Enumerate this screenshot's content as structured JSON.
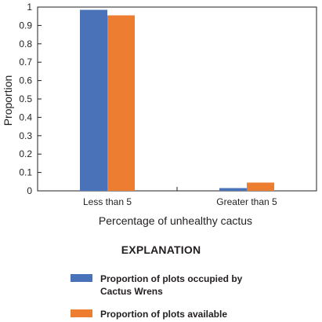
{
  "chart_data": {
    "type": "bar",
    "ylabel": "Proportion",
    "xlabel": "Percentage of unhealthy cactus",
    "categories": [
      "Less than 5",
      "Greater than 5"
    ],
    "ylim": [
      0,
      1
    ],
    "yticks": [
      "0",
      "0.1",
      "0.2",
      "0.3",
      "0.4",
      "0.5",
      "0.6",
      "0.7",
      "0.8",
      "0.9",
      "1"
    ],
    "grid": false,
    "series": [
      {
        "name": "Proportion of plots occupied by Cactus Wrens",
        "color": "#4a72b8",
        "values": [
          0.985,
          0.015
        ]
      },
      {
        "name": "Proportion of plots available",
        "color": "#ed7d31",
        "values": [
          0.955,
          0.045
        ]
      }
    ]
  },
  "legend": {
    "title": "EXPLANATION",
    "items": [
      {
        "line1": "Proportion of plots occupied by",
        "line2": "Cactus Wrens",
        "color": "#4a72b8"
      },
      {
        "line1": "Proportion of plots available",
        "line2": "",
        "color": "#ed7d31"
      }
    ]
  }
}
